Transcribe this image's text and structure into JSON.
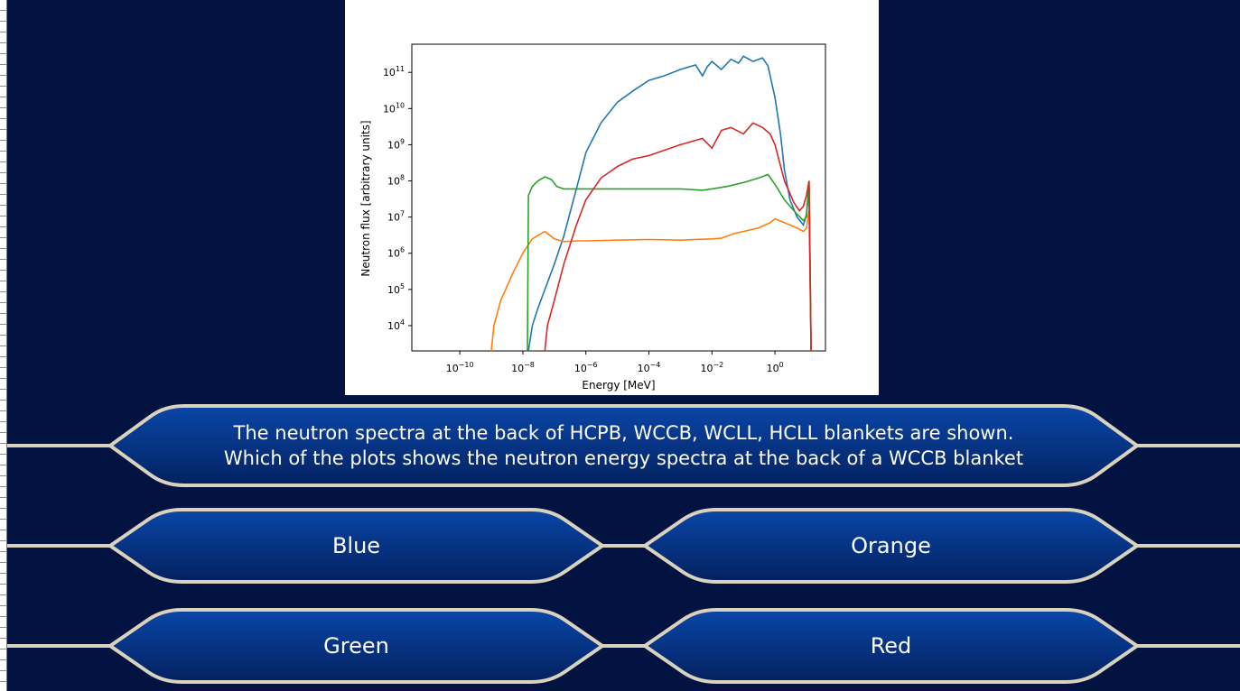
{
  "question": {
    "line1": "The neutron spectra at the back of HCPB, WCCB, WCLL, HCLL blankets are shown.",
    "line2": "Which of the plots shows the neutron energy spectra at the back of a WCCB blanket"
  },
  "answers": {
    "a": "Blue",
    "b": "Orange",
    "c": "Green",
    "d": "Red"
  },
  "colors": {
    "background": "#021341",
    "panel_fill_top": "#0a46a8",
    "panel_fill_bottom": "#03215f",
    "panel_border": "#d9d2bc"
  },
  "chart_data": {
    "type": "line",
    "xlabel": "Energy [MeV]",
    "ylabel": "Neutron flux [arbitrary units]",
    "xscale": "log",
    "yscale": "log",
    "xlim": [
      3e-12,
      40
    ],
    "ylim": [
      2000,
      600000000000.0
    ],
    "x_ticks": [
      {
        "value": 1e-10,
        "base": "10",
        "exp": "−10"
      },
      {
        "value": 1e-08,
        "base": "10",
        "exp": "−8"
      },
      {
        "value": 1e-06,
        "base": "10",
        "exp": "−6"
      },
      {
        "value": 0.0001,
        "base": "10",
        "exp": "−4"
      },
      {
        "value": 0.01,
        "base": "10",
        "exp": "−2"
      },
      {
        "value": 1,
        "base": "10",
        "exp": "0"
      }
    ],
    "y_ticks": [
      {
        "value": 10000.0,
        "base": "10",
        "exp": "4"
      },
      {
        "value": 100000.0,
        "base": "10",
        "exp": "5"
      },
      {
        "value": 1000000.0,
        "base": "10",
        "exp": "6"
      },
      {
        "value": 10000000.0,
        "base": "10",
        "exp": "7"
      },
      {
        "value": 100000000.0,
        "base": "10",
        "exp": "8"
      },
      {
        "value": 1000000000.0,
        "base": "10",
        "exp": "9"
      },
      {
        "value": 10000000000.0,
        "base": "10",
        "exp": "10"
      },
      {
        "value": 100000000000.0,
        "base": "10",
        "exp": "11"
      }
    ],
    "grid": false,
    "legend": "none",
    "series": [
      {
        "color": "#1f77b4",
        "x": [
          1.5e-08,
          2e-08,
          3e-08,
          5e-08,
          1e-07,
          2e-07,
          5e-07,
          1e-06,
          3e-06,
          1e-05,
          3e-05,
          0.0001,
          0.0003,
          0.001,
          0.003,
          0.005,
          0.007,
          0.01,
          0.02,
          0.04,
          0.07,
          0.1,
          0.2,
          0.4,
          0.6,
          1,
          1.5,
          2,
          3,
          5,
          8,
          10,
          12,
          14
        ],
        "y": [
          2000,
          10000.0,
          30000.0,
          100000.0,
          500000.0,
          3000000.0,
          60000000.0,
          600000000.0,
          4000000000.0,
          15000000000.0,
          30000000000.0,
          60000000000.0,
          80000000000.0,
          120000000000.0,
          160000000000.0,
          80000000000.0,
          140000000000.0,
          200000000000.0,
          120000000000.0,
          230000000000.0,
          180000000000.0,
          280000000000.0,
          200000000000.0,
          250000000000.0,
          150000000000.0,
          20000000000.0,
          2000000000.0,
          200000000.0,
          30000000.0,
          10000000.0,
          6000000.0,
          12000000.0,
          100000000.0,
          2000.0
        ]
      },
      {
        "color": "#ff7f0e",
        "x": [
          1e-09,
          1.2e-09,
          2e-09,
          5e-09,
          1e-08,
          2e-08,
          5e-08,
          1e-07,
          2e-07,
          5e-07,
          1e-06,
          1e-05,
          0.0001,
          0.001,
          0.01,
          0.02,
          0.05,
          0.1,
          0.3,
          0.7,
          1,
          2,
          5,
          8,
          10,
          12,
          14
        ],
        "y": [
          2000,
          10000.0,
          50000.0,
          300000.0,
          1000000.0,
          2500000.0,
          4000000.0,
          2500000.0,
          2100000.0,
          2200000.0,
          2200000.0,
          2300000.0,
          2400000.0,
          2300000.0,
          2500000.0,
          2600000.0,
          3500000.0,
          4000000.0,
          5000000.0,
          7000000.0,
          9000000.0,
          7000000.0,
          5000000.0,
          4000000.0,
          5000000.0,
          15000000.0,
          2000.0
        ]
      },
      {
        "color": "#2ca02c",
        "x": [
          1.4e-08,
          1.5e-08,
          2e-08,
          3e-08,
          5e-08,
          8e-08,
          1.2e-07,
          2e-07,
          4e-07,
          1e-06,
          1e-05,
          0.0001,
          0.001,
          0.005,
          0.01,
          0.03,
          0.1,
          0.3,
          0.6,
          1,
          2,
          5,
          8,
          10,
          12,
          14
        ],
        "y": [
          2000,
          40000000.0,
          70000000.0,
          100000000.0,
          130000000.0,
          110000000.0,
          70000000.0,
          60000000.0,
          60000000.0,
          60000000.0,
          60000000.0,
          60000000.0,
          60000000.0,
          55000000.0,
          60000000.0,
          70000000.0,
          90000000.0,
          120000000.0,
          150000000.0,
          80000000.0,
          30000000.0,
          12000000.0,
          8000000.0,
          10000000.0,
          90000000.0,
          2000.0
        ]
      },
      {
        "color": "#d62728",
        "x": [
          5e-08,
          6e-08,
          1e-07,
          2e-07,
          5e-07,
          1e-06,
          3e-06,
          1e-05,
          3e-05,
          0.0001,
          0.001,
          0.005,
          0.01,
          0.02,
          0.04,
          0.1,
          0.2,
          0.4,
          0.7,
          1,
          2,
          4,
          6,
          8,
          10,
          12,
          14
        ],
        "y": [
          2000,
          10000.0,
          50000.0,
          500000.0,
          6000000.0,
          30000000.0,
          120000000.0,
          250000000.0,
          400000000.0,
          500000000.0,
          1000000000.0,
          1500000000.0,
          800000000.0,
          2500000000.0,
          3000000000.0,
          2000000000.0,
          4000000000.0,
          3000000000.0,
          2000000000.0,
          1000000000.0,
          100000000.0,
          25000000.0,
          15000000.0,
          20000000.0,
          40000000.0,
          100000000.0,
          2000.0
        ]
      }
    ]
  }
}
